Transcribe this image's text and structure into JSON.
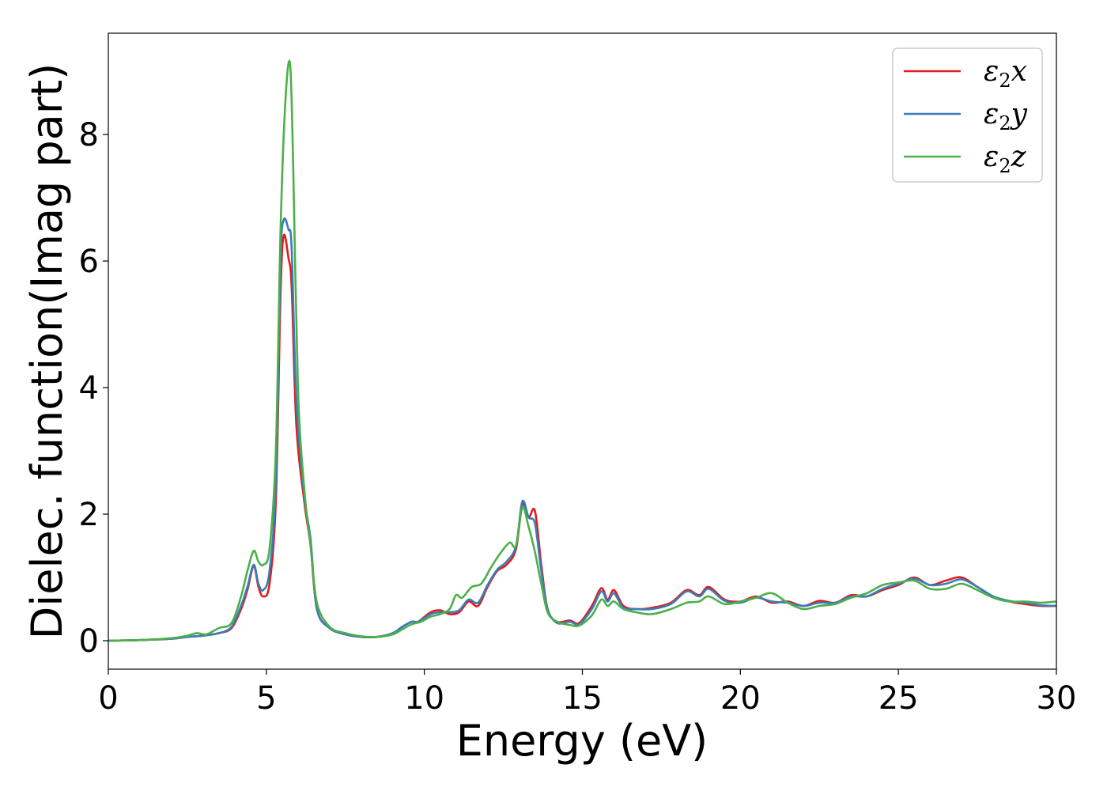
{
  "chart_data": {
    "type": "line",
    "title": "",
    "xlabel": "Energy (eV)",
    "ylabel": "Dielec. function(Imag part)",
    "xlim": [
      0,
      30
    ],
    "ylim": [
      -0.45,
      9.6
    ],
    "xticks": [
      0,
      5,
      10,
      15,
      20,
      25,
      30
    ],
    "yticks": [
      0,
      2,
      4,
      6,
      8
    ],
    "grid": false,
    "legend_position": "top-right",
    "series": [
      {
        "name": "ε2x",
        "legend_base": "ε",
        "legend_sub": "2",
        "legend_var": "x",
        "color": "#e41a1c",
        "points": [
          [
            0,
            0
          ],
          [
            1,
            0.01
          ],
          [
            2,
            0.03
          ],
          [
            2.5,
            0.06
          ],
          [
            3,
            0.08
          ],
          [
            3.5,
            0.12
          ],
          [
            3.9,
            0.2
          ],
          [
            4.2,
            0.5
          ],
          [
            4.4,
            0.8
          ],
          [
            4.6,
            1.18
          ],
          [
            4.75,
            0.85
          ],
          [
            4.9,
            0.7
          ],
          [
            5.1,
            0.9
          ],
          [
            5.3,
            2.2
          ],
          [
            5.45,
            5.5
          ],
          [
            5.55,
            6.4
          ],
          [
            5.7,
            6.05
          ],
          [
            5.8,
            5.6
          ],
          [
            5.95,
            3.4
          ],
          [
            6.2,
            2.2
          ],
          [
            6.4,
            1.5
          ],
          [
            6.6,
            0.5
          ],
          [
            7,
            0.2
          ],
          [
            7.5,
            0.1
          ],
          [
            8,
            0.06
          ],
          [
            8.5,
            0.06
          ],
          [
            9,
            0.12
          ],
          [
            9.3,
            0.22
          ],
          [
            9.6,
            0.3
          ],
          [
            9.8,
            0.3
          ],
          [
            10.2,
            0.45
          ],
          [
            10.5,
            0.48
          ],
          [
            10.8,
            0.42
          ],
          [
            11.1,
            0.45
          ],
          [
            11.4,
            0.62
          ],
          [
            11.7,
            0.55
          ],
          [
            12,
            0.85
          ],
          [
            12.3,
            1.1
          ],
          [
            12.6,
            1.2
          ],
          [
            12.9,
            1.45
          ],
          [
            13.1,
            2.15
          ],
          [
            13.3,
            1.95
          ],
          [
            13.5,
            2.05
          ],
          [
            13.7,
            1.2
          ],
          [
            13.9,
            0.5
          ],
          [
            14.2,
            0.3
          ],
          [
            14.6,
            0.32
          ],
          [
            14.9,
            0.28
          ],
          [
            15.3,
            0.55
          ],
          [
            15.6,
            0.83
          ],
          [
            15.8,
            0.65
          ],
          [
            16,
            0.8
          ],
          [
            16.3,
            0.55
          ],
          [
            16.7,
            0.5
          ],
          [
            17.2,
            0.52
          ],
          [
            17.8,
            0.6
          ],
          [
            18.3,
            0.8
          ],
          [
            18.7,
            0.72
          ],
          [
            19,
            0.85
          ],
          [
            19.5,
            0.65
          ],
          [
            20,
            0.62
          ],
          [
            20.5,
            0.7
          ],
          [
            21,
            0.6
          ],
          [
            21.5,
            0.62
          ],
          [
            22,
            0.55
          ],
          [
            22.5,
            0.63
          ],
          [
            23,
            0.6
          ],
          [
            23.5,
            0.72
          ],
          [
            24,
            0.7
          ],
          [
            24.5,
            0.8
          ],
          [
            25,
            0.88
          ],
          [
            25.5,
            1.0
          ],
          [
            26,
            0.88
          ],
          [
            26.5,
            0.95
          ],
          [
            27,
            1.0
          ],
          [
            27.5,
            0.85
          ],
          [
            28,
            0.7
          ],
          [
            28.5,
            0.62
          ],
          [
            29,
            0.58
          ],
          [
            29.5,
            0.55
          ],
          [
            30,
            0.55
          ]
        ]
      },
      {
        "name": "ε2y",
        "legend_base": "ε",
        "legend_sub": "2",
        "legend_var": "y",
        "color": "#377eb8",
        "points": [
          [
            0,
            0
          ],
          [
            1,
            0.01
          ],
          [
            2,
            0.03
          ],
          [
            2.5,
            0.06
          ],
          [
            3,
            0.08
          ],
          [
            3.5,
            0.12
          ],
          [
            3.9,
            0.22
          ],
          [
            4.2,
            0.55
          ],
          [
            4.4,
            0.85
          ],
          [
            4.6,
            1.2
          ],
          [
            4.75,
            0.9
          ],
          [
            4.9,
            0.8
          ],
          [
            5.1,
            1.1
          ],
          [
            5.3,
            2.5
          ],
          [
            5.45,
            6.0
          ],
          [
            5.55,
            6.65
          ],
          [
            5.7,
            6.5
          ],
          [
            5.8,
            6.2
          ],
          [
            5.95,
            3.8
          ],
          [
            6.2,
            2.3
          ],
          [
            6.4,
            1.6
          ],
          [
            6.6,
            0.5
          ],
          [
            7,
            0.2
          ],
          [
            7.5,
            0.1
          ],
          [
            8,
            0.06
          ],
          [
            8.5,
            0.06
          ],
          [
            9,
            0.12
          ],
          [
            9.3,
            0.22
          ],
          [
            9.6,
            0.3
          ],
          [
            9.8,
            0.3
          ],
          [
            10.2,
            0.42
          ],
          [
            10.5,
            0.45
          ],
          [
            10.8,
            0.45
          ],
          [
            11.1,
            0.48
          ],
          [
            11.4,
            0.65
          ],
          [
            11.7,
            0.6
          ],
          [
            12,
            0.88
          ],
          [
            12.3,
            1.12
          ],
          [
            12.6,
            1.25
          ],
          [
            12.9,
            1.5
          ],
          [
            13.1,
            2.2
          ],
          [
            13.3,
            1.95
          ],
          [
            13.5,
            1.85
          ],
          [
            13.7,
            1.1
          ],
          [
            13.9,
            0.5
          ],
          [
            14.2,
            0.28
          ],
          [
            14.6,
            0.3
          ],
          [
            14.9,
            0.26
          ],
          [
            15.3,
            0.5
          ],
          [
            15.6,
            0.78
          ],
          [
            15.8,
            0.62
          ],
          [
            16,
            0.75
          ],
          [
            16.3,
            0.52
          ],
          [
            16.7,
            0.5
          ],
          [
            17.2,
            0.5
          ],
          [
            17.8,
            0.58
          ],
          [
            18.3,
            0.78
          ],
          [
            18.7,
            0.7
          ],
          [
            19,
            0.82
          ],
          [
            19.5,
            0.63
          ],
          [
            20,
            0.6
          ],
          [
            20.5,
            0.68
          ],
          [
            21,
            0.62
          ],
          [
            21.5,
            0.6
          ],
          [
            22,
            0.55
          ],
          [
            22.5,
            0.6
          ],
          [
            23,
            0.6
          ],
          [
            23.5,
            0.7
          ],
          [
            24,
            0.7
          ],
          [
            24.5,
            0.82
          ],
          [
            25,
            0.9
          ],
          [
            25.5,
            0.98
          ],
          [
            26,
            0.88
          ],
          [
            26.5,
            0.9
          ],
          [
            27,
            0.97
          ],
          [
            27.5,
            0.85
          ],
          [
            28,
            0.7
          ],
          [
            28.5,
            0.63
          ],
          [
            29,
            0.6
          ],
          [
            29.5,
            0.56
          ],
          [
            30,
            0.55
          ]
        ]
      },
      {
        "name": "ε2z",
        "legend_base": "ε",
        "legend_sub": "2",
        "legend_var": "z",
        "color": "#4daf4a",
        "points": [
          [
            0,
            0
          ],
          [
            1,
            0.01
          ],
          [
            2,
            0.04
          ],
          [
            2.5,
            0.08
          ],
          [
            2.8,
            0.12
          ],
          [
            3.1,
            0.1
          ],
          [
            3.5,
            0.2
          ],
          [
            3.9,
            0.28
          ],
          [
            4.2,
            0.7
          ],
          [
            4.4,
            1.1
          ],
          [
            4.6,
            1.42
          ],
          [
            4.75,
            1.25
          ],
          [
            4.9,
            1.2
          ],
          [
            5.1,
            1.45
          ],
          [
            5.3,
            3.0
          ],
          [
            5.45,
            6.5
          ],
          [
            5.6,
            8.5
          ],
          [
            5.75,
            9.12
          ],
          [
            5.85,
            7.5
          ],
          [
            6.0,
            4.0
          ],
          [
            6.2,
            2.4
          ],
          [
            6.4,
            1.5
          ],
          [
            6.6,
            0.6
          ],
          [
            7,
            0.22
          ],
          [
            7.5,
            0.12
          ],
          [
            8,
            0.07
          ],
          [
            8.5,
            0.06
          ],
          [
            9,
            0.1
          ],
          [
            9.3,
            0.18
          ],
          [
            9.6,
            0.26
          ],
          [
            9.9,
            0.3
          ],
          [
            10.2,
            0.38
          ],
          [
            10.5,
            0.42
          ],
          [
            10.8,
            0.5
          ],
          [
            11,
            0.72
          ],
          [
            11.2,
            0.68
          ],
          [
            11.5,
            0.85
          ],
          [
            11.8,
            0.9
          ],
          [
            12.1,
            1.15
          ],
          [
            12.4,
            1.38
          ],
          [
            12.7,
            1.55
          ],
          [
            12.9,
            1.5
          ],
          [
            13.1,
            2.1
          ],
          [
            13.3,
            1.8
          ],
          [
            13.5,
            1.4
          ],
          [
            13.7,
            0.9
          ],
          [
            13.9,
            0.45
          ],
          [
            14.2,
            0.3
          ],
          [
            14.6,
            0.25
          ],
          [
            14.9,
            0.24
          ],
          [
            15.3,
            0.4
          ],
          [
            15.6,
            0.65
          ],
          [
            15.8,
            0.55
          ],
          [
            16,
            0.62
          ],
          [
            16.3,
            0.5
          ],
          [
            16.7,
            0.45
          ],
          [
            17.2,
            0.42
          ],
          [
            17.8,
            0.5
          ],
          [
            18.3,
            0.6
          ],
          [
            18.7,
            0.62
          ],
          [
            19,
            0.7
          ],
          [
            19.5,
            0.58
          ],
          [
            20,
            0.62
          ],
          [
            20.5,
            0.68
          ],
          [
            21,
            0.75
          ],
          [
            21.5,
            0.6
          ],
          [
            22,
            0.5
          ],
          [
            22.5,
            0.55
          ],
          [
            23,
            0.58
          ],
          [
            23.5,
            0.68
          ],
          [
            24,
            0.75
          ],
          [
            24.5,
            0.88
          ],
          [
            25,
            0.92
          ],
          [
            25.5,
            0.95
          ],
          [
            26,
            0.82
          ],
          [
            26.5,
            0.82
          ],
          [
            27,
            0.9
          ],
          [
            27.5,
            0.8
          ],
          [
            28,
            0.68
          ],
          [
            28.5,
            0.62
          ],
          [
            29,
            0.62
          ],
          [
            29.5,
            0.6
          ],
          [
            30,
            0.62
          ]
        ]
      }
    ]
  }
}
